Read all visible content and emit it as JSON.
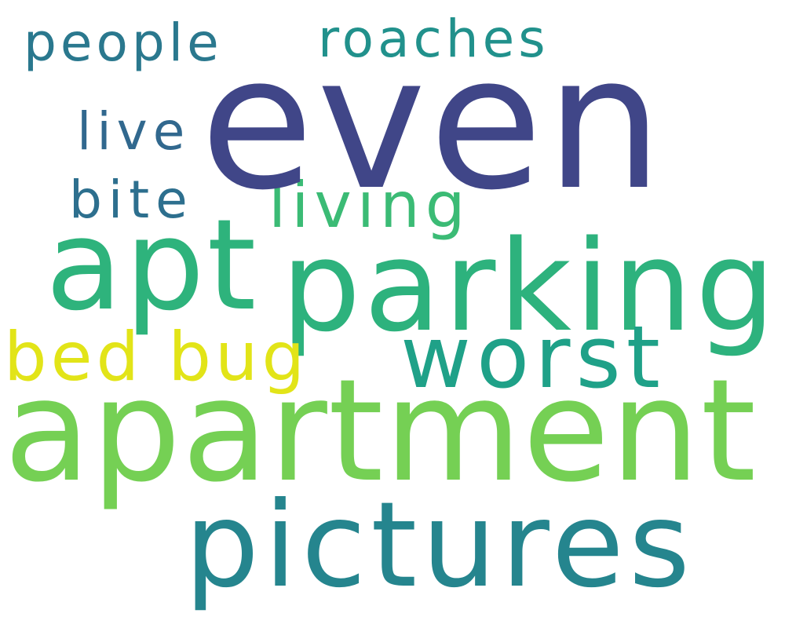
{
  "words": {
    "people": "people",
    "roaches": "roaches",
    "even": "even",
    "live": "live",
    "bite": "bite",
    "living": "living",
    "apt": "apt",
    "parking": "parking",
    "bed_bug": "bed bug",
    "worst": "worst",
    "apartment": "apartment",
    "pictures": "pictures"
  },
  "colors": {
    "background": "#ffffff",
    "people": "#2a788e",
    "roaches": "#21918c",
    "even": "#404688",
    "live": "#31688e",
    "bite": "#2d6f8e",
    "living": "#3bbb75",
    "apt": "#2eb37c",
    "parking": "#2db27d",
    "bed_bug": "#e2e418",
    "worst": "#1fa188",
    "apartment": "#75d054",
    "pictures": "#25858e"
  }
}
